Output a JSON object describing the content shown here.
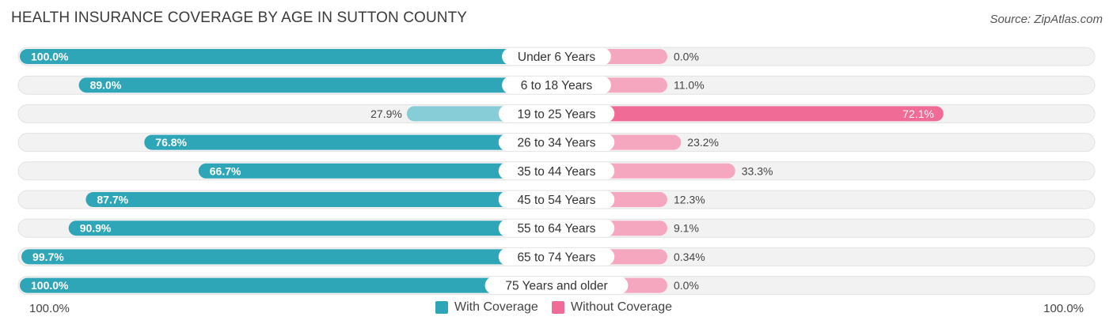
{
  "title": "HEALTH INSURANCE COVERAGE BY AGE IN SUTTON COUNTY",
  "source": "Source: ZipAtlas.com",
  "colors": {
    "with_strong": "#2ea6b8",
    "with_light": "#86cdd8",
    "without_strong": "#f06b95",
    "without_light": "#f6a7c0",
    "track": "#ececec"
  },
  "chart_data": {
    "type": "bar",
    "orientation": "horizontal-diverging",
    "categories": [
      "Under 6 Years",
      "6 to 18 Years",
      "19 to 25 Years",
      "26 to 34 Years",
      "35 to 44 Years",
      "45 to 54 Years",
      "55 to 64 Years",
      "65 to 74 Years",
      "75 Years and older"
    ],
    "series": [
      {
        "name": "With Coverage",
        "values": [
          100.0,
          89.0,
          27.9,
          76.8,
          66.7,
          87.7,
          90.9,
          99.7,
          100.0
        ],
        "labels": [
          "100.0%",
          "89.0%",
          "27.9%",
          "76.8%",
          "66.7%",
          "87.7%",
          "90.9%",
          "99.7%",
          "100.0%"
        ]
      },
      {
        "name": "Without Coverage",
        "values": [
          0.0,
          11.0,
          72.1,
          23.2,
          33.3,
          12.3,
          9.1,
          0.34,
          0.0
        ],
        "labels": [
          "0.0%",
          "11.0%",
          "72.1%",
          "23.2%",
          "33.3%",
          "12.3%",
          "9.1%",
          "0.34%",
          "0.0%"
        ]
      }
    ],
    "xlim": [
      0,
      100
    ],
    "axis_left_label": "100.0%",
    "axis_right_label": "100.0%",
    "legend": [
      "With Coverage",
      "Without Coverage"
    ]
  }
}
